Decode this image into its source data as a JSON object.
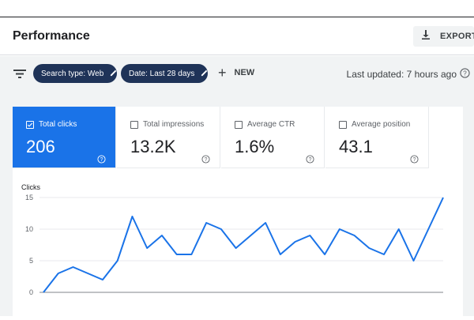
{
  "header": {
    "title": "Performance",
    "export_label": "EXPORT"
  },
  "filters": {
    "search_type_chip": "Search type: Web",
    "date_chip": "Date: Last 28 days",
    "new_label": "NEW",
    "last_updated": "Last updated: 7 hours ago"
  },
  "metrics": [
    {
      "label": "Total clicks",
      "value": "206",
      "active": true
    },
    {
      "label": "Total impressions",
      "value": "13.2K",
      "active": false
    },
    {
      "label": "Average CTR",
      "value": "1.6%",
      "active": false
    },
    {
      "label": "Average position",
      "value": "43.1",
      "active": false
    }
  ],
  "colors": {
    "accent": "#1a73e8",
    "chip": "#1f3358",
    "line": "#1a73e8"
  },
  "chart_data": {
    "type": "line",
    "ylabel": "Clicks",
    "ylim": [
      0,
      15
    ],
    "yticks": [
      0,
      5,
      10,
      15
    ],
    "grid": true,
    "x": [
      1,
      2,
      3,
      4,
      5,
      6,
      7,
      8,
      9,
      10,
      11,
      12,
      13,
      14,
      15,
      16,
      17,
      18,
      19,
      20,
      21,
      22,
      23,
      24,
      25,
      26,
      27,
      28
    ],
    "series": [
      {
        "values": [
          0,
          3,
          4,
          3,
          2,
          5,
          12,
          7,
          9,
          6,
          6,
          11,
          10,
          7,
          9,
          11,
          6,
          8,
          9,
          6,
          10,
          9,
          7,
          6,
          10,
          5,
          10,
          15
        ]
      }
    ]
  }
}
